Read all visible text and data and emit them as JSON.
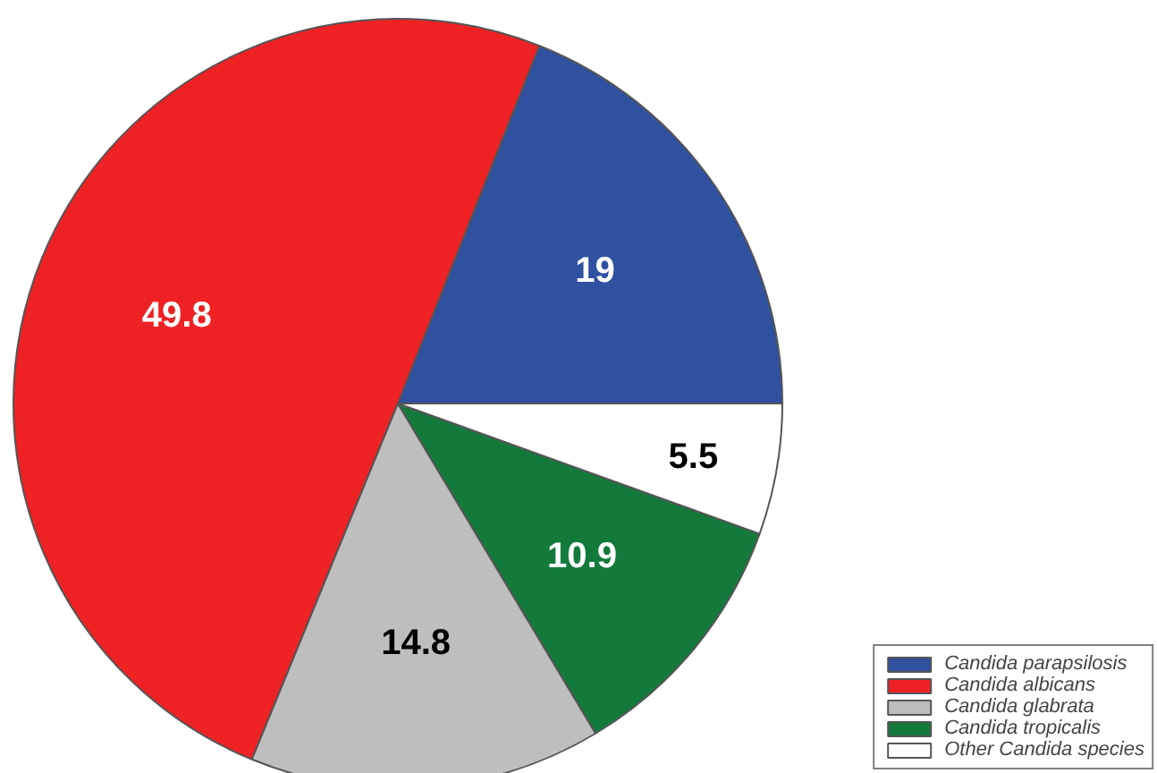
{
  "chart_data": {
    "type": "pie",
    "categories": [
      "Candida parapsilosis",
      "Candida albicans",
      "Candida glabrata",
      "Candida tropicalis",
      "Other Candida species"
    ],
    "values": [
      19,
      49.8,
      14.8,
      10.9,
      5.5
    ],
    "colors": [
      "#3050a0",
      "#ee2124",
      "#bebebe",
      "#137a3c",
      "#ffffff"
    ],
    "data_labels": true,
    "legend": "bottom right"
  }
}
